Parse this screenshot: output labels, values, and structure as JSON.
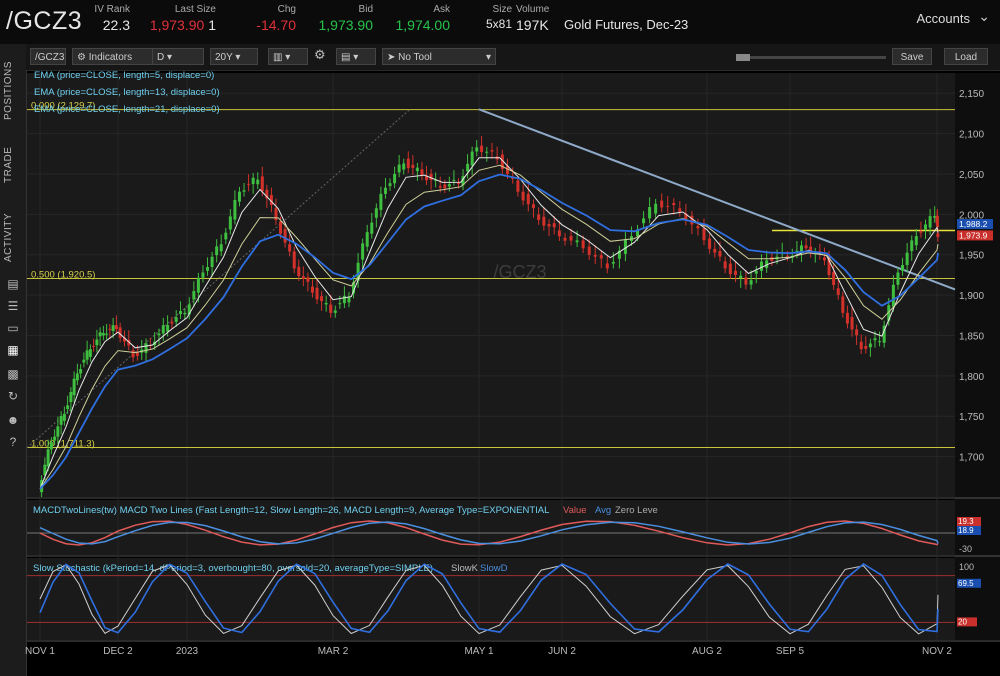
{
  "header": {
    "symbol": "/GCZ3",
    "fields": [
      {
        "label": "IV Rank",
        "value": "22.3",
        "color": "white"
      },
      {
        "label": "Last Size",
        "value": "1,973.90",
        "value2": "1",
        "color": "red"
      },
      {
        "label": "Chg",
        "value": "-14.70",
        "color": "red"
      },
      {
        "label": "Bid",
        "value": "1,973.90",
        "color": "green"
      },
      {
        "label": "Ask",
        "value": "1,974.00",
        "color": "green"
      },
      {
        "label": "Size",
        "value": "5x81",
        "color": "white"
      },
      {
        "label": "Volume",
        "value": "197K",
        "color": "white"
      }
    ],
    "description": "Gold Futures, Dec-23",
    "accounts_label": "Accounts"
  },
  "sidebar": {
    "tabs": [
      "POSITIONS",
      "TRADE",
      "ACTIVITY"
    ]
  },
  "toolbar": {
    "symbol": "/GCZ3",
    "indicators": "Indicators",
    "aggregation": "D",
    "range": "20Y",
    "tool": "No Tool",
    "save": "Save",
    "load": "Load"
  },
  "chart_data": [
    {
      "type": "line",
      "title": "/GCZ3",
      "watermark": "/GCZ3",
      "ylim": [
        1650,
        2175
      ],
      "y_ticks": [
        1700,
        1750,
        1800,
        1850,
        1900,
        1950,
        2000,
        2050,
        2100,
        2150
      ],
      "y_tick_labels": [
        "1,700",
        "1,750",
        "1,800",
        "1,850",
        "1,900",
        "1,950",
        "2,000",
        "2,050",
        "2,100",
        "2,150"
      ],
      "x_tick_labels": [
        "NOV 1",
        "DEC 2",
        "2023",
        "MAR 2",
        "MAY 1",
        "JUN 2",
        "AUG 2",
        "SEP 5",
        "NOV 2"
      ],
      "studies": [
        "EMA (price=CLOSE, length=5, displace=0)",
        "EMA (price=CLOSE, length=13, displace=0)",
        "EMA (price=CLOSE, length=21, displace=0)"
      ],
      "fib_levels": [
        {
          "label": "0.000 (2,129.7)",
          "value": 2129.7
        },
        {
          "label": "0.500 (1,920.5)",
          "value": 1920.5
        },
        {
          "label": "1.000 (1,711.3)",
          "value": 1711.3
        }
      ],
      "horizontal_line": 1980,
      "last_price_label": "1,973.9",
      "ema_label": "1,988.2",
      "trendline": [
        {
          "x": "MAY 1",
          "y": 2130
        },
        {
          "x": "NOV 2",
          "y": 1907
        }
      ],
      "close_points": [
        {
          "x": "NOV 1",
          "y": 1660
        },
        {
          "x": "NOV 1",
          "y": 1720
        },
        {
          "x": "NOV 1",
          "y": 1755
        },
        {
          "x": "NOV 1",
          "y": 1805
        },
        {
          "x": "NOV 1",
          "y": 1835
        },
        {
          "x": "NOV 1",
          "y": 1855
        },
        {
          "x": "DEC 2",
          "y": 1860
        },
        {
          "x": "DEC 2",
          "y": 1825
        },
        {
          "x": "DEC 2",
          "y": 1840
        },
        {
          "x": "DEC 2",
          "y": 1865
        },
        {
          "x": "2023",
          "y": 1880
        },
        {
          "x": "2023",
          "y": 1930
        },
        {
          "x": "2023",
          "y": 1965
        },
        {
          "x": "2023",
          "y": 2030
        },
        {
          "x": "2023",
          "y": 2045
        },
        {
          "x": "2023",
          "y": 1995
        },
        {
          "x": "2023",
          "y": 1935
        },
        {
          "x": "2023",
          "y": 1905
        },
        {
          "x": "MAR 2",
          "y": 1880
        },
        {
          "x": "MAR 2",
          "y": 1900
        },
        {
          "x": "MAR 2",
          "y": 1980
        },
        {
          "x": "MAR 2",
          "y": 2035
        },
        {
          "x": "MAR 2",
          "y": 2065
        },
        {
          "x": "MAR 2",
          "y": 2050
        },
        {
          "x": "MAR 2",
          "y": 2035
        },
        {
          "x": "MAR 2",
          "y": 2040
        },
        {
          "x": "MAY 1",
          "y": 2085
        },
        {
          "x": "MAY 1",
          "y": 2070
        },
        {
          "x": "MAY 1",
          "y": 2030
        },
        {
          "x": "MAY 1",
          "y": 1995
        },
        {
          "x": "JUN 2",
          "y": 1975
        },
        {
          "x": "JUN 2",
          "y": 1960
        },
        {
          "x": "JUN 2",
          "y": 1935
        },
        {
          "x": "JUN 2",
          "y": 1975
        },
        {
          "x": "JUN 2",
          "y": 2015
        },
        {
          "x": "JUN 2",
          "y": 2005
        },
        {
          "x": "AUG 2",
          "y": 1970
        },
        {
          "x": "AUG 2",
          "y": 1935
        },
        {
          "x": "AUG 2",
          "y": 1915
        },
        {
          "x": "AUG 2",
          "y": 1945
        },
        {
          "x": "SEP 5",
          "y": 1950
        },
        {
          "x": "SEP 5",
          "y": 1960
        },
        {
          "x": "SEP 5",
          "y": 1945
        },
        {
          "x": "SEP 5",
          "y": 1880
        },
        {
          "x": "SEP 5",
          "y": 1835
        },
        {
          "x": "SEP 5",
          "y": 1845
        },
        {
          "x": "SEP 5",
          "y": 1930
        },
        {
          "x": "SEP 5",
          "y": 1975
        },
        {
          "x": "NOV 2",
          "y": 2000
        },
        {
          "x": "NOV 2",
          "y": 1974
        }
      ]
    },
    {
      "type": "line",
      "title": "MACDTwoLines(tw) MACD Two Lines (Fast Length=12, Slow Length=26, MACD Length=9, Average Type=EXPONENTIAL",
      "legend": [
        "Value",
        "Avg",
        "Zero Leve"
      ],
      "y_tick_labels": [
        "-30"
      ],
      "last_labels": [
        "19.3",
        "18.9"
      ]
    },
    {
      "type": "line",
      "title": "Slow Stochastic (kPeriod=14, dPeriod=3, overbought=80, oversold=20, averageType=SIMPLE)",
      "legend": [
        "SlowK",
        "SlowD"
      ],
      "y_tick_labels": [
        "100"
      ],
      "overbought": 80,
      "oversold": 20,
      "last_labels": [
        "69.5",
        "20"
      ]
    }
  ]
}
